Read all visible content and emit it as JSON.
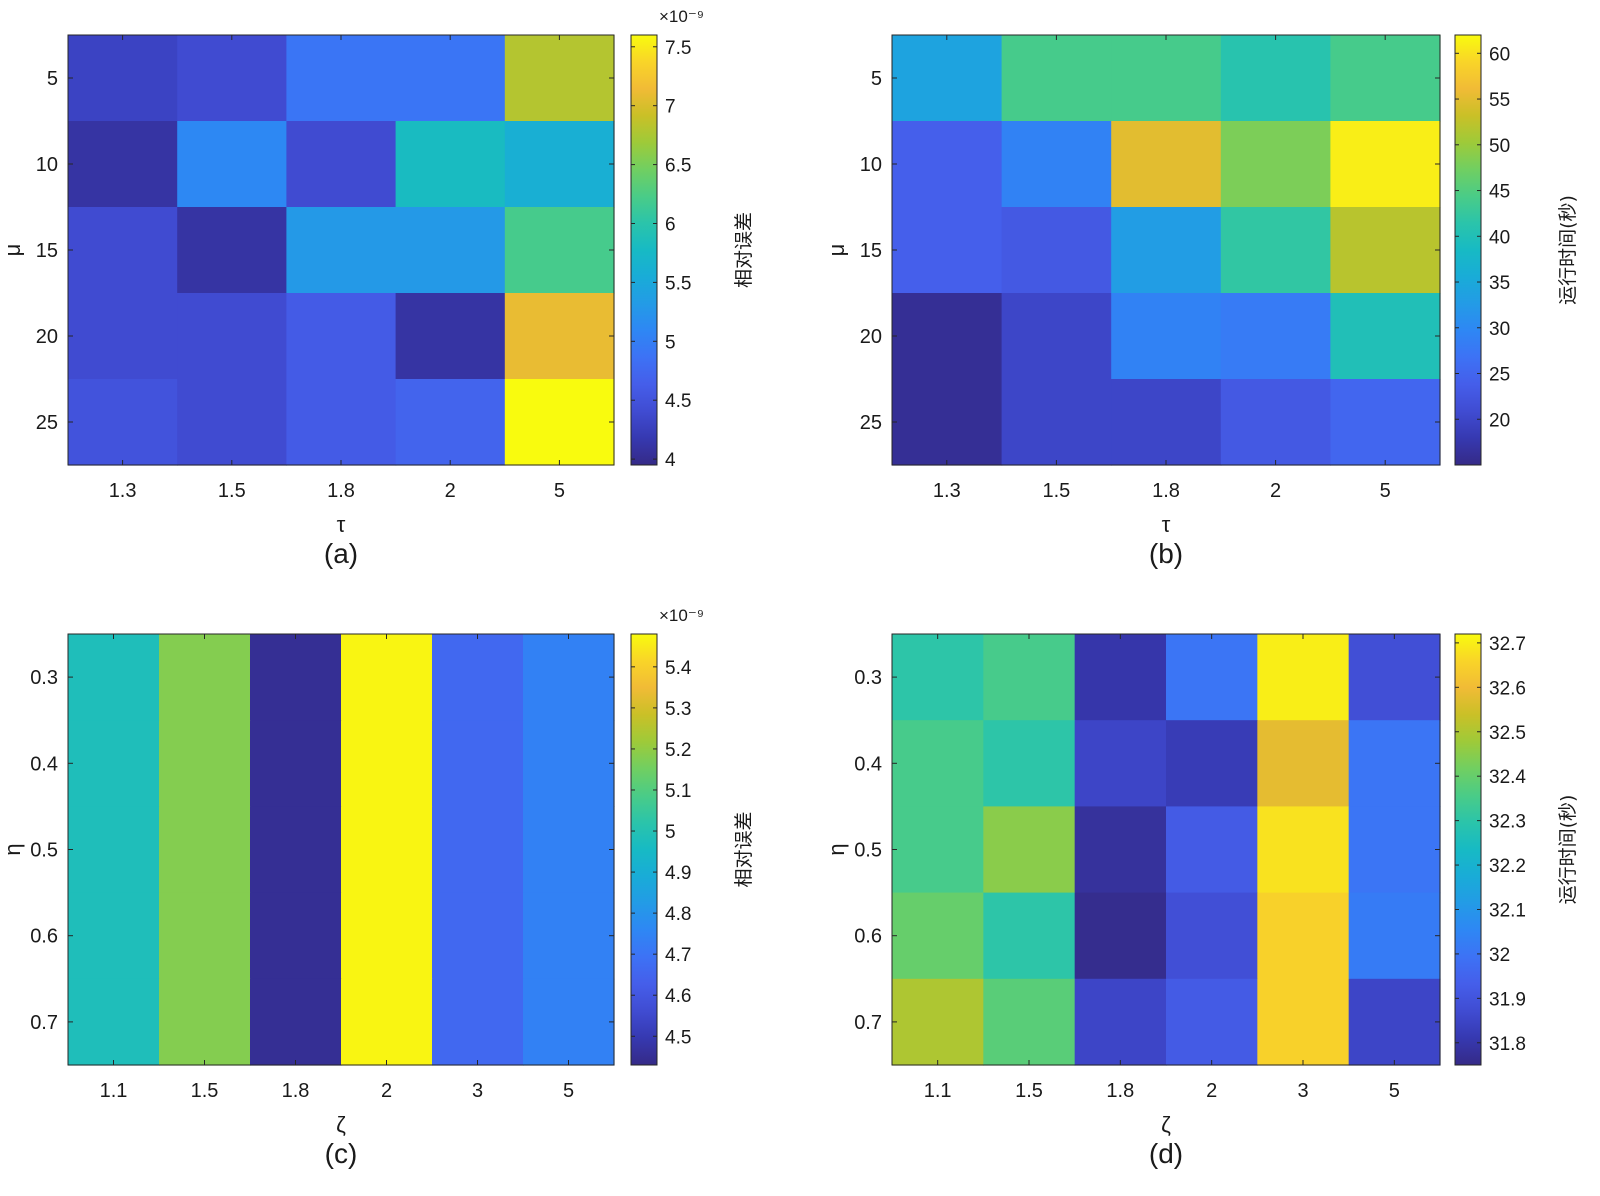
{
  "chart_data": [
    {
      "type": "heatmap",
      "panel_label": "(a)",
      "xlabel": "τ",
      "ylabel": "μ",
      "categories_x": [
        "1.3",
        "1.5",
        "1.8",
        "2",
        "5"
      ],
      "categories_y": [
        "5",
        "10",
        "15",
        "20",
        "25"
      ],
      "values": [
        [
          4.3,
          4.4,
          4.9,
          4.9,
          6.8
        ],
        [
          4.1,
          5.1,
          4.4,
          5.8,
          5.6
        ],
        [
          4.4,
          4.1,
          5.3,
          5.3,
          6.2
        ],
        [
          4.4,
          4.4,
          4.6,
          4.1,
          7.1
        ],
        [
          4.5,
          4.4,
          4.6,
          4.7,
          7.6
        ]
      ],
      "colorbar": {
        "range": [
          3.95,
          7.6
        ],
        "ticks": [
          "4",
          "4.5",
          "5",
          "5.5",
          "6",
          "6.5",
          "7",
          "7.5"
        ],
        "label": "相对误差",
        "multiplier": "×10⁻⁹"
      }
    },
    {
      "type": "heatmap",
      "panel_label": "(b)",
      "xlabel": "τ",
      "ylabel": "μ",
      "categories_x": [
        "1.3",
        "1.5",
        "1.8",
        "2",
        "5"
      ],
      "categories_y": [
        "5",
        "10",
        "15",
        "20",
        "25"
      ],
      "values": [
        [
          34,
          44,
          44,
          41,
          44
        ],
        [
          24,
          29,
          55,
          48,
          61
        ],
        [
          24,
          23,
          33,
          42,
          52
        ],
        [
          16,
          20,
          29,
          28,
          40
        ],
        [
          16,
          20,
          20,
          23,
          25
        ]
      ],
      "colorbar": {
        "range": [
          15,
          62
        ],
        "ticks": [
          "20",
          "25",
          "30",
          "35",
          "40",
          "45",
          "50",
          "55",
          "60"
        ],
        "label": "运行时间(秒)"
      }
    },
    {
      "type": "heatmap",
      "panel_label": "(c)",
      "xlabel": "ζ",
      "ylabel": "η",
      "categories_x": [
        "1.1",
        "1.5",
        "1.8",
        "2",
        "3",
        "5"
      ],
      "categories_y": [
        "0.3",
        "0.4",
        "0.5",
        "0.6",
        "0.7"
      ],
      "values": [
        [
          4.98,
          5.18,
          4.45,
          5.47,
          4.66,
          4.74
        ],
        [
          4.98,
          5.18,
          4.45,
          5.47,
          4.66,
          4.74
        ],
        [
          4.98,
          5.18,
          4.45,
          5.47,
          4.66,
          4.74
        ],
        [
          4.98,
          5.18,
          4.45,
          5.47,
          4.66,
          4.74
        ],
        [
          4.98,
          5.18,
          4.45,
          5.47,
          4.66,
          4.74
        ]
      ],
      "colorbar": {
        "range": [
          4.43,
          5.48
        ],
        "ticks": [
          "4.5",
          "4.6",
          "4.7",
          "4.8",
          "4.9",
          "5",
          "5.1",
          "5.2",
          "5.3",
          "5.4"
        ],
        "label": "相对误差",
        "multiplier": "×10⁻⁹"
      }
    },
    {
      "type": "heatmap",
      "panel_label": "(d)",
      "xlabel": "ζ",
      "ylabel": "η",
      "categories_x": [
        "1.1",
        "1.5",
        "1.8",
        "2",
        "3",
        "5"
      ],
      "categories_y": [
        "0.3",
        "0.4",
        "0.5",
        "0.6",
        "0.7"
      ],
      "values": [
        [
          32.3,
          32.35,
          31.8,
          32.0,
          32.7,
          31.88
        ],
        [
          32.35,
          32.3,
          31.85,
          31.82,
          32.58,
          32.0
        ],
        [
          32.35,
          32.45,
          31.78,
          31.92,
          32.68,
          32.0
        ],
        [
          32.4,
          32.3,
          31.76,
          31.88,
          32.65,
          32.02
        ],
        [
          32.5,
          32.38,
          31.85,
          31.92,
          32.65,
          31.85
        ]
      ],
      "colorbar": {
        "range": [
          31.75,
          32.72
        ],
        "ticks": [
          "31.8",
          "31.9",
          "32",
          "32.1",
          "32.2",
          "32.3",
          "32.4",
          "32.5",
          "32.6",
          "32.7"
        ],
        "label": "运行时间(秒)"
      }
    }
  ]
}
